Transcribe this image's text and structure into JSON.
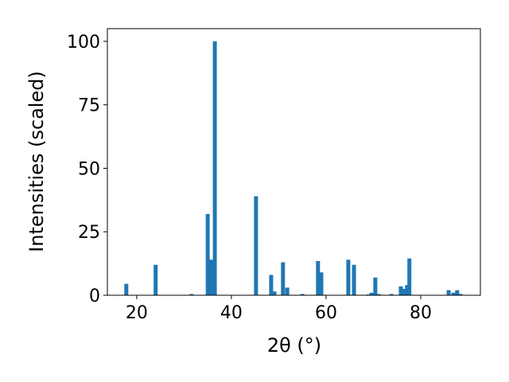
{
  "chart_data": {
    "type": "bar",
    "xlabel": "2θ (°)",
    "ylabel": "Intensities (scaled)",
    "color": "#1f77b4",
    "x": [
      17.8,
      24.0,
      31.6,
      35.0,
      35.8,
      36.5,
      45.2,
      48.4,
      49.1,
      50.9,
      51.8,
      55.0,
      58.3,
      59.0,
      64.7,
      65.9,
      68.9,
      69.6,
      70.4,
      71.1,
      73.8,
      75.8,
      76.6,
      77.1,
      77.6,
      85.9,
      86.9,
      87.7,
      88.4
    ],
    "values": [
      4.5,
      12,
      0.5,
      32,
      14,
      100,
      39,
      8,
      1.5,
      13,
      3,
      0.5,
      13.5,
      9,
      14,
      12,
      0.3,
      1,
      7,
      0.5,
      0.5,
      3.5,
      2.5,
      4,
      14.5,
      2,
      1,
      2,
      0.5
    ],
    "xlim": [
      13.8,
      92.6
    ],
    "ylim": [
      0,
      105
    ],
    "xticks": [
      20,
      40,
      60,
      80
    ],
    "yticks": [
      0,
      25,
      50,
      75,
      100
    ]
  }
}
